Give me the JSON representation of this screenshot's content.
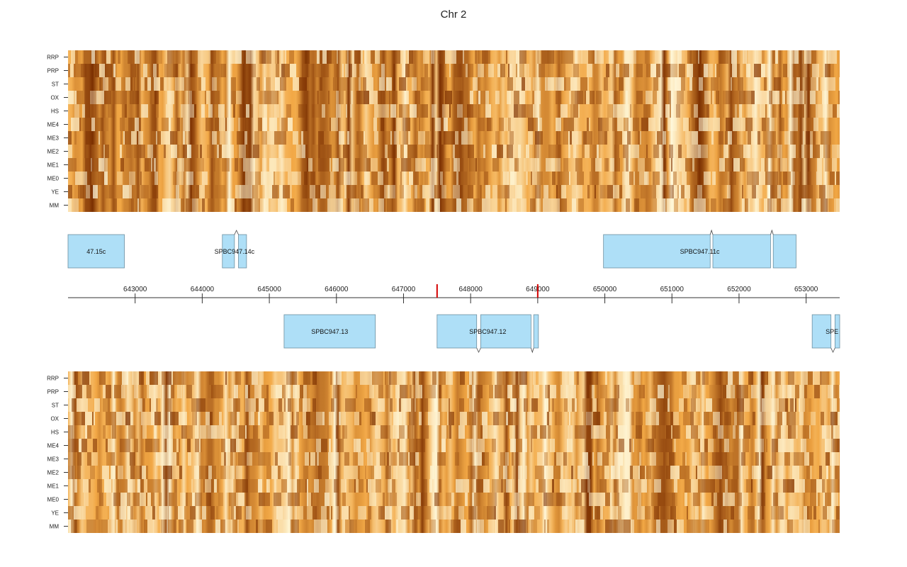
{
  "title": "Chr 2",
  "chart_data": {
    "type": "heatmap",
    "title": "Chr 2",
    "colors": {
      "low": "#fffbe0",
      "mid": "#f2a845",
      "high": "#7a2e00",
      "gene_fill": "#aedff7",
      "gene_stroke": "#6c8fa0",
      "marker": "#d40000"
    },
    "row_labels": [
      "RRP",
      "PRP",
      "ST",
      "OX",
      "HS",
      "ME4",
      "ME3",
      "ME2",
      "ME1",
      "ME0",
      "YE",
      "MM"
    ],
    "xlim": [
      642000,
      653500
    ],
    "x_ticks": [
      643000,
      644000,
      645000,
      646000,
      647000,
      648000,
      649000,
      650000,
      651000,
      652000,
      653000
    ],
    "x_tick_labels": [
      "643000",
      "644000",
      "645000",
      "646000",
      "647000",
      "648000",
      "649000",
      "650000",
      "651000",
      "652000",
      "653000"
    ],
    "markers": [
      647500,
      649000
    ],
    "genes_top": [
      {
        "label": "47.15c",
        "exons": [
          [
            642000,
            642840
          ]
        ]
      },
      {
        "label": "SPBC947.14c",
        "exons": [
          [
            644300,
            644480
          ],
          [
            644540,
            644660
          ]
        ]
      },
      {
        "label": "SPBC947.11c",
        "exons": [
          [
            649980,
            651570
          ],
          [
            651610,
            652470
          ],
          [
            652510,
            652850
          ]
        ]
      }
    ],
    "genes_bottom": [
      {
        "label": "SPBC947.13",
        "exons": [
          [
            645220,
            646580
          ]
        ]
      },
      {
        "label": "SPBC947.12",
        "exons": [
          [
            647500,
            648090
          ],
          [
            648150,
            648900
          ],
          [
            648940,
            649010
          ]
        ]
      },
      {
        "label": "SPE",
        "exons": [
          [
            653090,
            653370
          ],
          [
            653430,
            653500
          ]
        ]
      }
    ]
  }
}
